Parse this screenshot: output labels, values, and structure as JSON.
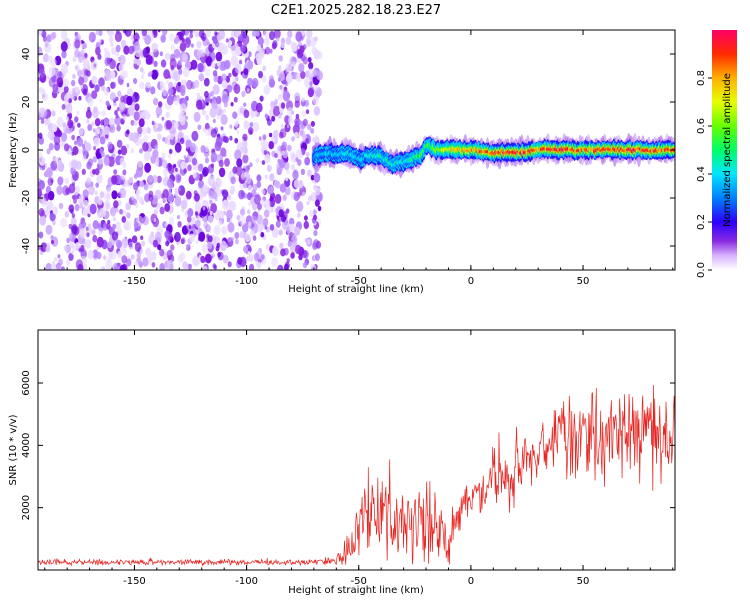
{
  "title": "C2E1.2025.282.18.23.E27",
  "chart_data": [
    {
      "type": "heatmap",
      "xlabel": "Height of straight line (km)",
      "ylabel": "Frequency (Hz)",
      "xlim": [
        -193,
        91
      ],
      "ylim": [
        -50,
        50
      ],
      "xticks": [
        -150,
        -100,
        -50,
        0,
        50
      ],
      "yticks": [
        -40,
        -20,
        0,
        20,
        40
      ],
      "noise_region_end_km": -70,
      "signal_track": {
        "x": [
          -70,
          -65,
          -60,
          -55,
          -50,
          -45,
          -40,
          -35,
          -30,
          -25,
          -22,
          -20,
          -15,
          -10,
          0,
          10,
          20,
          30,
          40,
          50,
          60,
          70,
          80,
          90
        ],
        "center_freq": [
          -3,
          -1,
          -2,
          -1,
          -4,
          -2,
          -3,
          -6,
          -5,
          -3,
          -2,
          2,
          0,
          0,
          0,
          -1,
          -1,
          0,
          0,
          0,
          0,
          0,
          0,
          0
        ],
        "peak_amplitude": [
          0.35,
          0.4,
          0.4,
          0.45,
          0.4,
          0.45,
          0.5,
          0.45,
          0.45,
          0.5,
          0.6,
          0.55,
          0.65,
          0.75,
          0.85,
          0.9,
          0.95,
          0.9,
          0.95,
          0.9,
          0.95,
          0.95,
          0.9,
          0.9
        ]
      },
      "colorbar": {
        "label": "Normalized spectral amplitude",
        "range": [
          0,
          1
        ],
        "ticks": [
          "0.0",
          "0.2",
          "0.4",
          "0.6",
          "0.8"
        ],
        "colormap": "rainbow"
      }
    },
    {
      "type": "line",
      "xlabel": "Height of straight line (km)",
      "ylabel": "SNR (10 * v/v)",
      "xlim": [
        -193,
        91
      ],
      "ylim": [
        0,
        7700
      ],
      "xticks": [
        -150,
        -100,
        -50,
        0,
        50
      ],
      "yticks": [
        2000,
        4000,
        6000
      ],
      "line_color": "#e8231f",
      "series": [
        {
          "name": "SNR",
          "x": [
            -193,
            -180,
            -160,
            -140,
            -120,
            -100,
            -80,
            -70,
            -60,
            -55,
            -50,
            -45,
            -40,
            -35,
            -30,
            -25,
            -20,
            -15,
            -10,
            -5,
            0,
            5,
            10,
            15,
            20,
            25,
            30,
            35,
            40,
            45,
            50,
            55,
            60,
            65,
            70,
            75,
            80,
            85,
            90
          ],
          "y": [
            250,
            250,
            250,
            250,
            250,
            250,
            250,
            260,
            300,
            700,
            1200,
            1800,
            2000,
            1700,
            1500,
            1700,
            1500,
            1200,
            900,
            2000,
            2300,
            2400,
            2800,
            2700,
            3100,
            3500,
            3600,
            4000,
            4300,
            4100,
            4500,
            4300,
            4200,
            4600,
            4500,
            4200,
            4400,
            3900,
            4400
          ],
          "spread": [
            90,
            90,
            90,
            90,
            90,
            90,
            90,
            100,
            150,
            700,
            1100,
            1400,
            1500,
            1300,
            1200,
            1300,
            1400,
            1200,
            900,
            700,
            700,
            800,
            900,
            900,
            1000,
            1000,
            1000,
            1100,
            1200,
            1300,
            1300,
            1400,
            1400,
            1400,
            1500,
            1500,
            1500,
            1500,
            1500
          ]
        }
      ]
    }
  ]
}
